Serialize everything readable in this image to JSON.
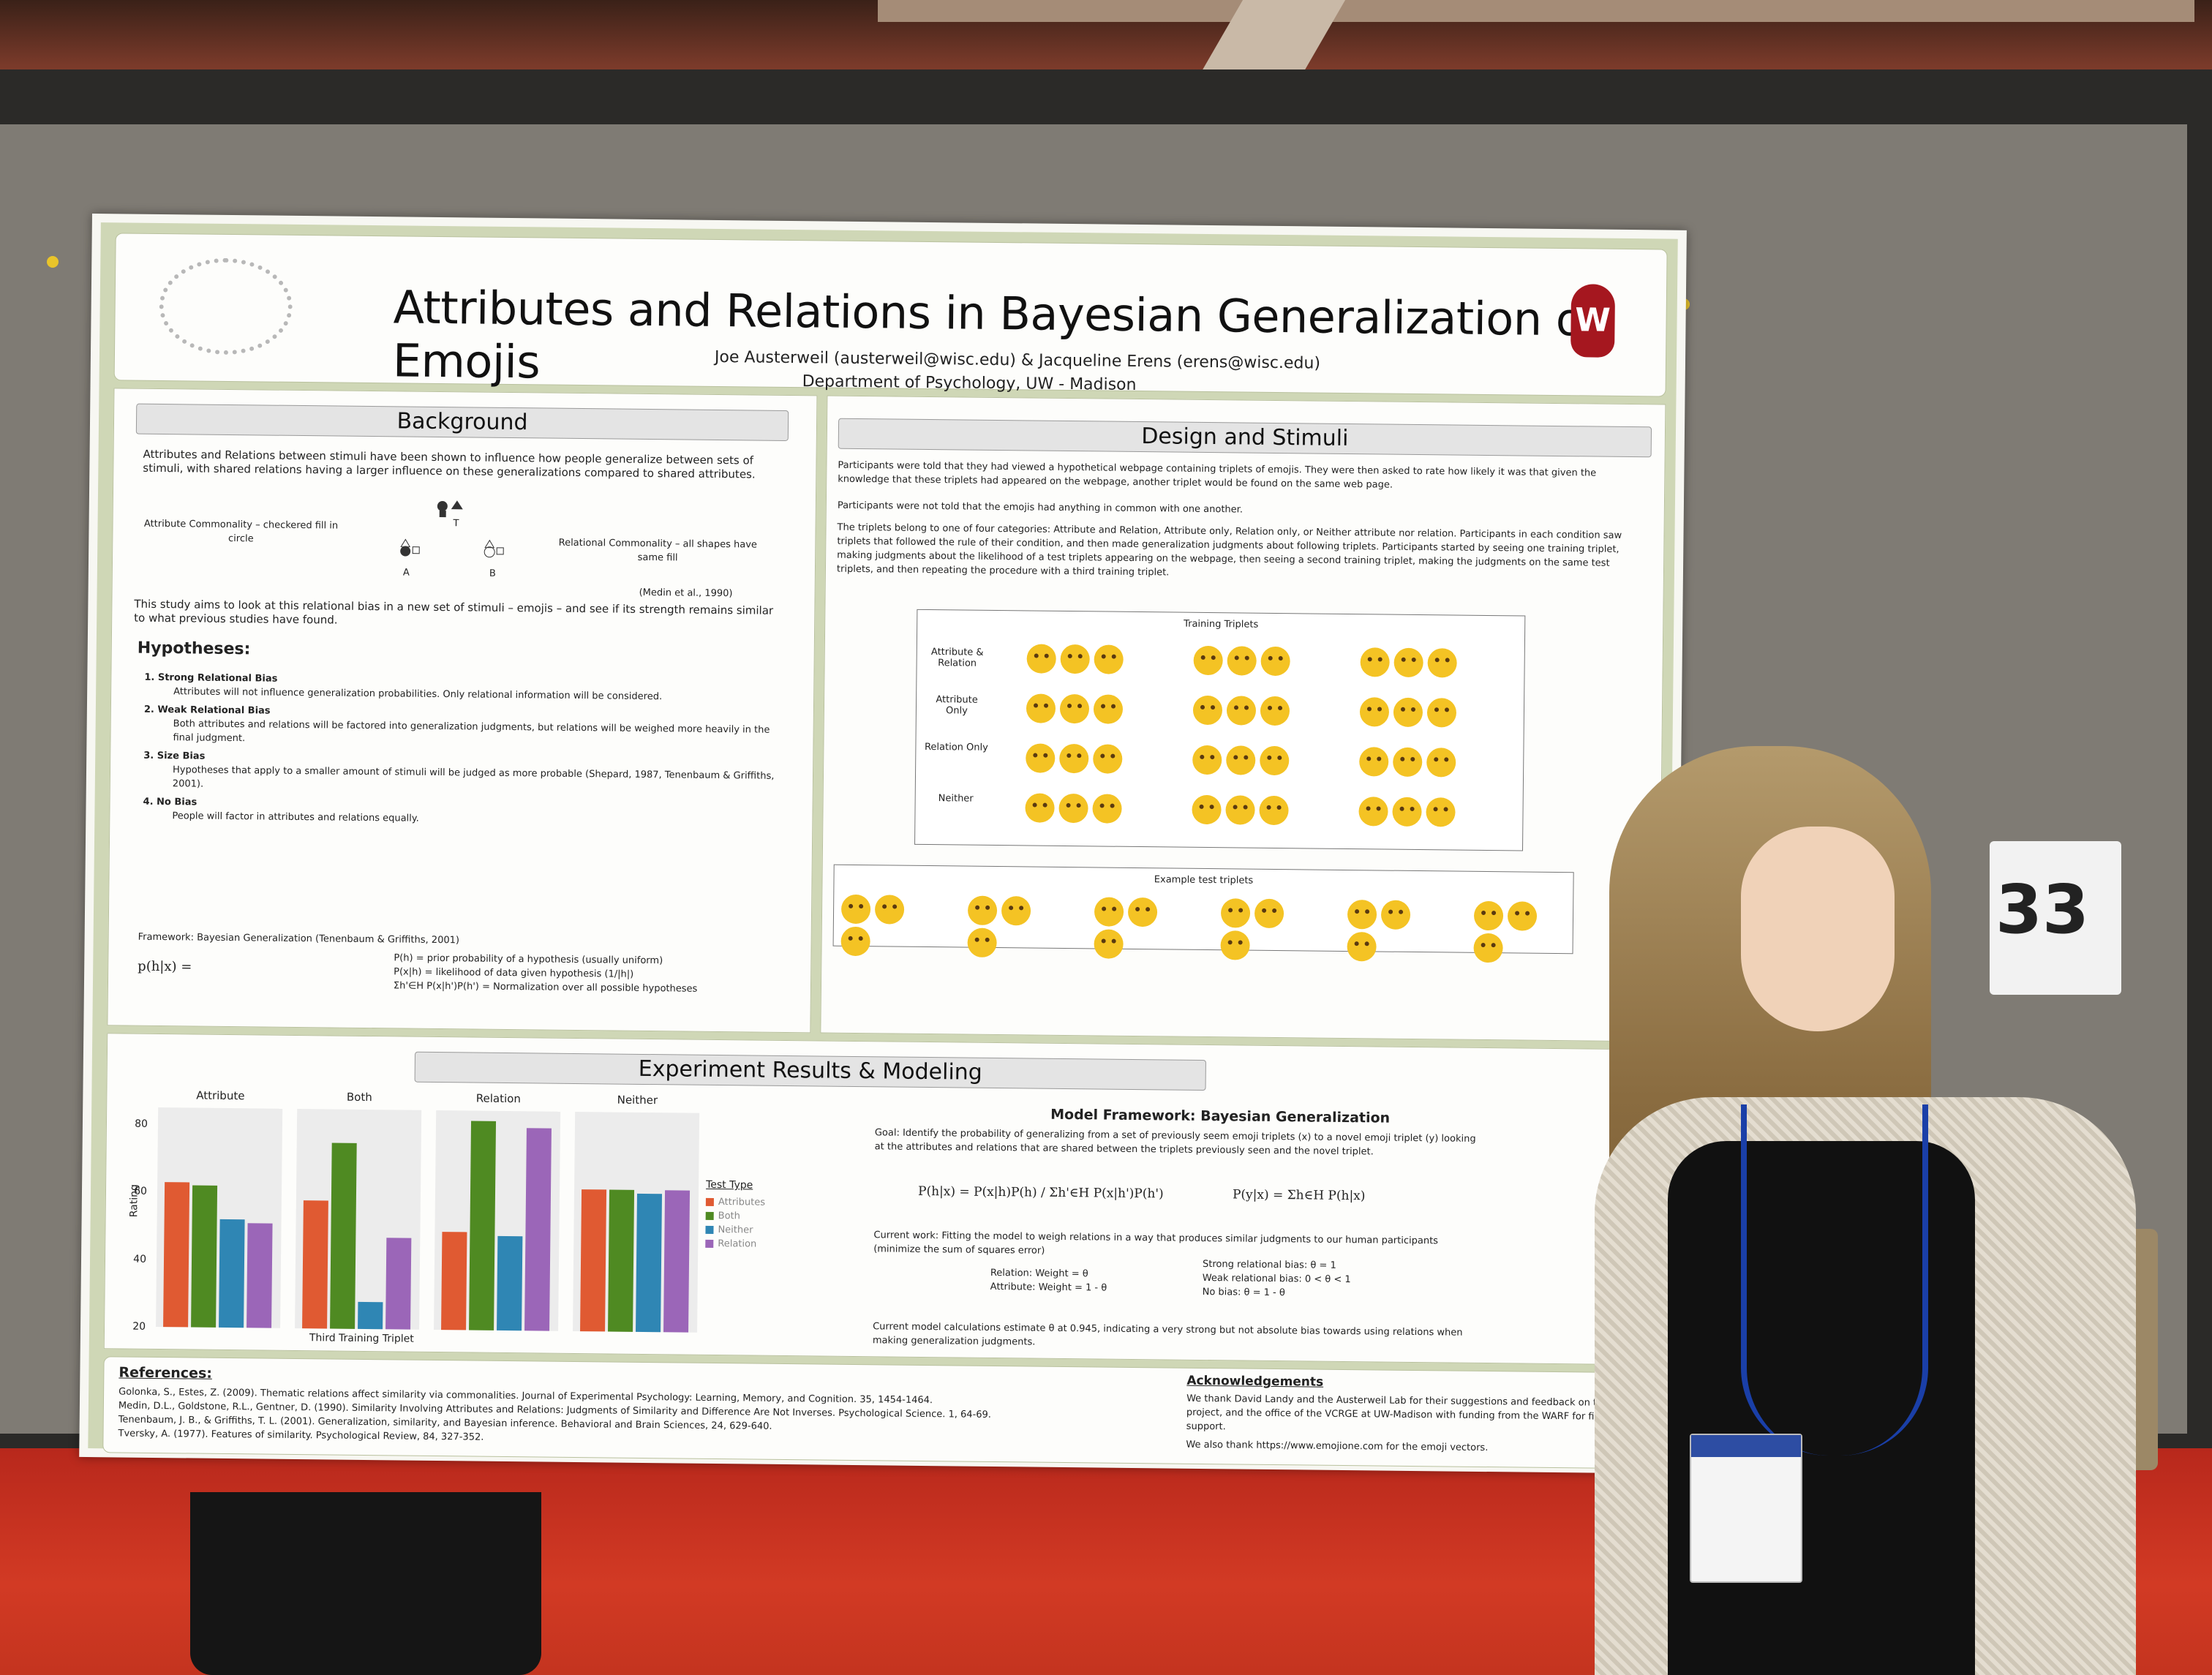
{
  "poster": {
    "title": "Attributes and Relations in Bayesian Generalization of Emojis",
    "authors": "Joe Austerweil (austerweil@wisc.edu) & Jacqueline Erens (erens@wisc.edu)",
    "department": "Department of Psychology, UW - Madison",
    "seal_letter": "W",
    "background": {
      "heading": "Background",
      "intro": "Attributes and Relations between stimuli have been shown to influence how people generalize between sets of stimuli, with shared relations having a larger influence on these generalizations compared to shared attributes.",
      "diagram_left": "Attribute Commonality – checkered fill in circle",
      "diagram_right": "Relational Commonality – all shapes have same fill",
      "label_t": "T",
      "label_a": "A",
      "label_b": "B",
      "citation": "(Medin et al., 1990)",
      "aim": "This study aims to look at this relational bias in a new set of stimuli – emojis – and see if its strength remains similar to what previous studies have found.",
      "hypotheses_heading": "Hypotheses:",
      "hypotheses": [
        {
          "title": "1. Strong Relational Bias",
          "detail": "Attributes will not influence generalization probabilities. Only relational information will be considered."
        },
        {
          "title": "2. Weak Relational Bias",
          "detail": "Both attributes and relations will be factored into generalization judgments, but relations will be weighed more heavily in the final judgment."
        },
        {
          "title": "3. Size Bias",
          "detail": "Hypotheses that apply to a smaller amount of stimuli will be judged as more probable (Shepard, 1987, Tenenbaum & Griffiths, 2001)."
        },
        {
          "title": "4. No Bias",
          "detail": "People will factor in attributes and relations equally."
        }
      ],
      "framework": "Framework: Bayesian Generalization (Tenenbaum & Griffiths, 2001)",
      "eq_lhs": "p(h|x) =",
      "eq_defs": [
        "P(h) = prior probability of a hypothesis (usually uniform)",
        "P(x|h) = likelihood of data given hypothesis (1/|h|)",
        "Σh'∈H P(x|h')P(h') = Normalization over all possible hypotheses"
      ]
    },
    "design": {
      "heading": "Design and Stimuli",
      "p1": "Participants were told that they had viewed a hypothetical webpage containing triplets of emojis. They were then asked to rate how likely it was that given the knowledge that these triplets had appeared on the webpage, another triplet would be found on the same web page.",
      "p2": "Participants were not told that the emojis had anything in common with one another.",
      "p3": "The triplets belong to one of four categories: Attribute and Relation, Attribute only, Relation only, or Neither attribute nor relation. Participants in each condition saw triplets that followed the rule of their condition, and then made generalization judgments about following triplets. Participants started by seeing one training triplet, making judgments about the likelihood of a test triplets appearing on the webpage, then seeing a second training triplet, making the judgments on the same test triplets, and then repeating the procedure with a third training triplet.",
      "training_label": "Training Triplets",
      "rows": [
        "Attribute & Relation",
        "Attribute Only",
        "Relation Only",
        "Neither"
      ],
      "test_label": "Example test triplets"
    },
    "results": {
      "heading": "Experiment Results & Modeling",
      "model_title": "Model Framework: Bayesian Generalization",
      "goal": "Goal: Identify the probability of generalizing from a set of previously seem emoji triplets (x) to a novel emoji triplet (y) looking at the attributes and relations that are shared between the triplets previously seen and the novel triplet.",
      "eq1": "P(h|x) = P(x|h)P(h) / Σh'∈H P(x|h')P(h')",
      "eq2": "P(y|x) = Σh∈H P(h|x)",
      "current_work": "Current work: Fitting the model to weigh relations in a way that produces similar judgments to our human participants (minimize the sum of squares error)",
      "weights": [
        "Relation: Weight = θ",
        "Attribute: Weight = 1 - θ"
      ],
      "biases": [
        "Strong relational bias: θ = 1",
        "Weak relational bias: 0 < θ < 1",
        "No bias: θ = 1 - θ"
      ],
      "estimate": "Current model calculations estimate θ at 0.945, indicating a very strong but not absolute bias towards using relations when making generalization judgments."
    },
    "references": {
      "heading": "References:",
      "items": [
        "Golonka, S., Estes, Z. (2009). Thematic relations affect similarity via commonalities. Journal of Experimental Psychology: Learning, Memory, and Cognition. 35, 1454-1464.",
        "Medin, D.L., Goldstone, R.L., Gentner, D. (1990). Similarity Involving Attributes and Relations: Judgments of Similarity and Difference Are Not Inverses. Psychological Science. 1, 64-69.",
        "Tenenbaum, J. B., & Griffiths, T. L. (2001). Generalization, similarity, and Bayesian inference. Behavioral and Brain Sciences, 24, 629-640.",
        "Tversky, A. (1977). Features of similarity. Psychological Review, 84, 327-352."
      ]
    },
    "acknowledgements": {
      "heading": "Acknowledgements",
      "text": "We thank David Landy and the Austerweil Lab for their suggestions and feedback on this project, and the office of the VCRGE at UW-Madison with funding from the WARF for financial support.",
      "text2": "We also thank https://www.emojione.com for the emoji vectors."
    }
  },
  "board_number": "33",
  "colors": {
    "attributes": "#e05a32",
    "both": "#4f8a22",
    "neither": "#2f86b4",
    "relation": "#9b66b8"
  },
  "chart_data": {
    "type": "bar",
    "facets": [
      "Attribute",
      "Both",
      "Relation",
      "Neither"
    ],
    "ylabel": "Rating",
    "xlabel": "Third Training Triplet",
    "legend_title": "Test Type",
    "series": [
      {
        "name": "Attributes",
        "values": [
          63,
          58,
          49,
          62
        ]
      },
      {
        "name": "Both",
        "values": [
          62,
          75,
          82,
          62
        ]
      },
      {
        "name": "Neither",
        "values": [
          52,
          28,
          48,
          61
        ]
      },
      {
        "name": "Relation",
        "values": [
          51,
          47,
          80,
          62
        ]
      }
    ],
    "ylim": [
      20,
      85
    ],
    "yticks": [
      20,
      40,
      60,
      80
    ]
  }
}
